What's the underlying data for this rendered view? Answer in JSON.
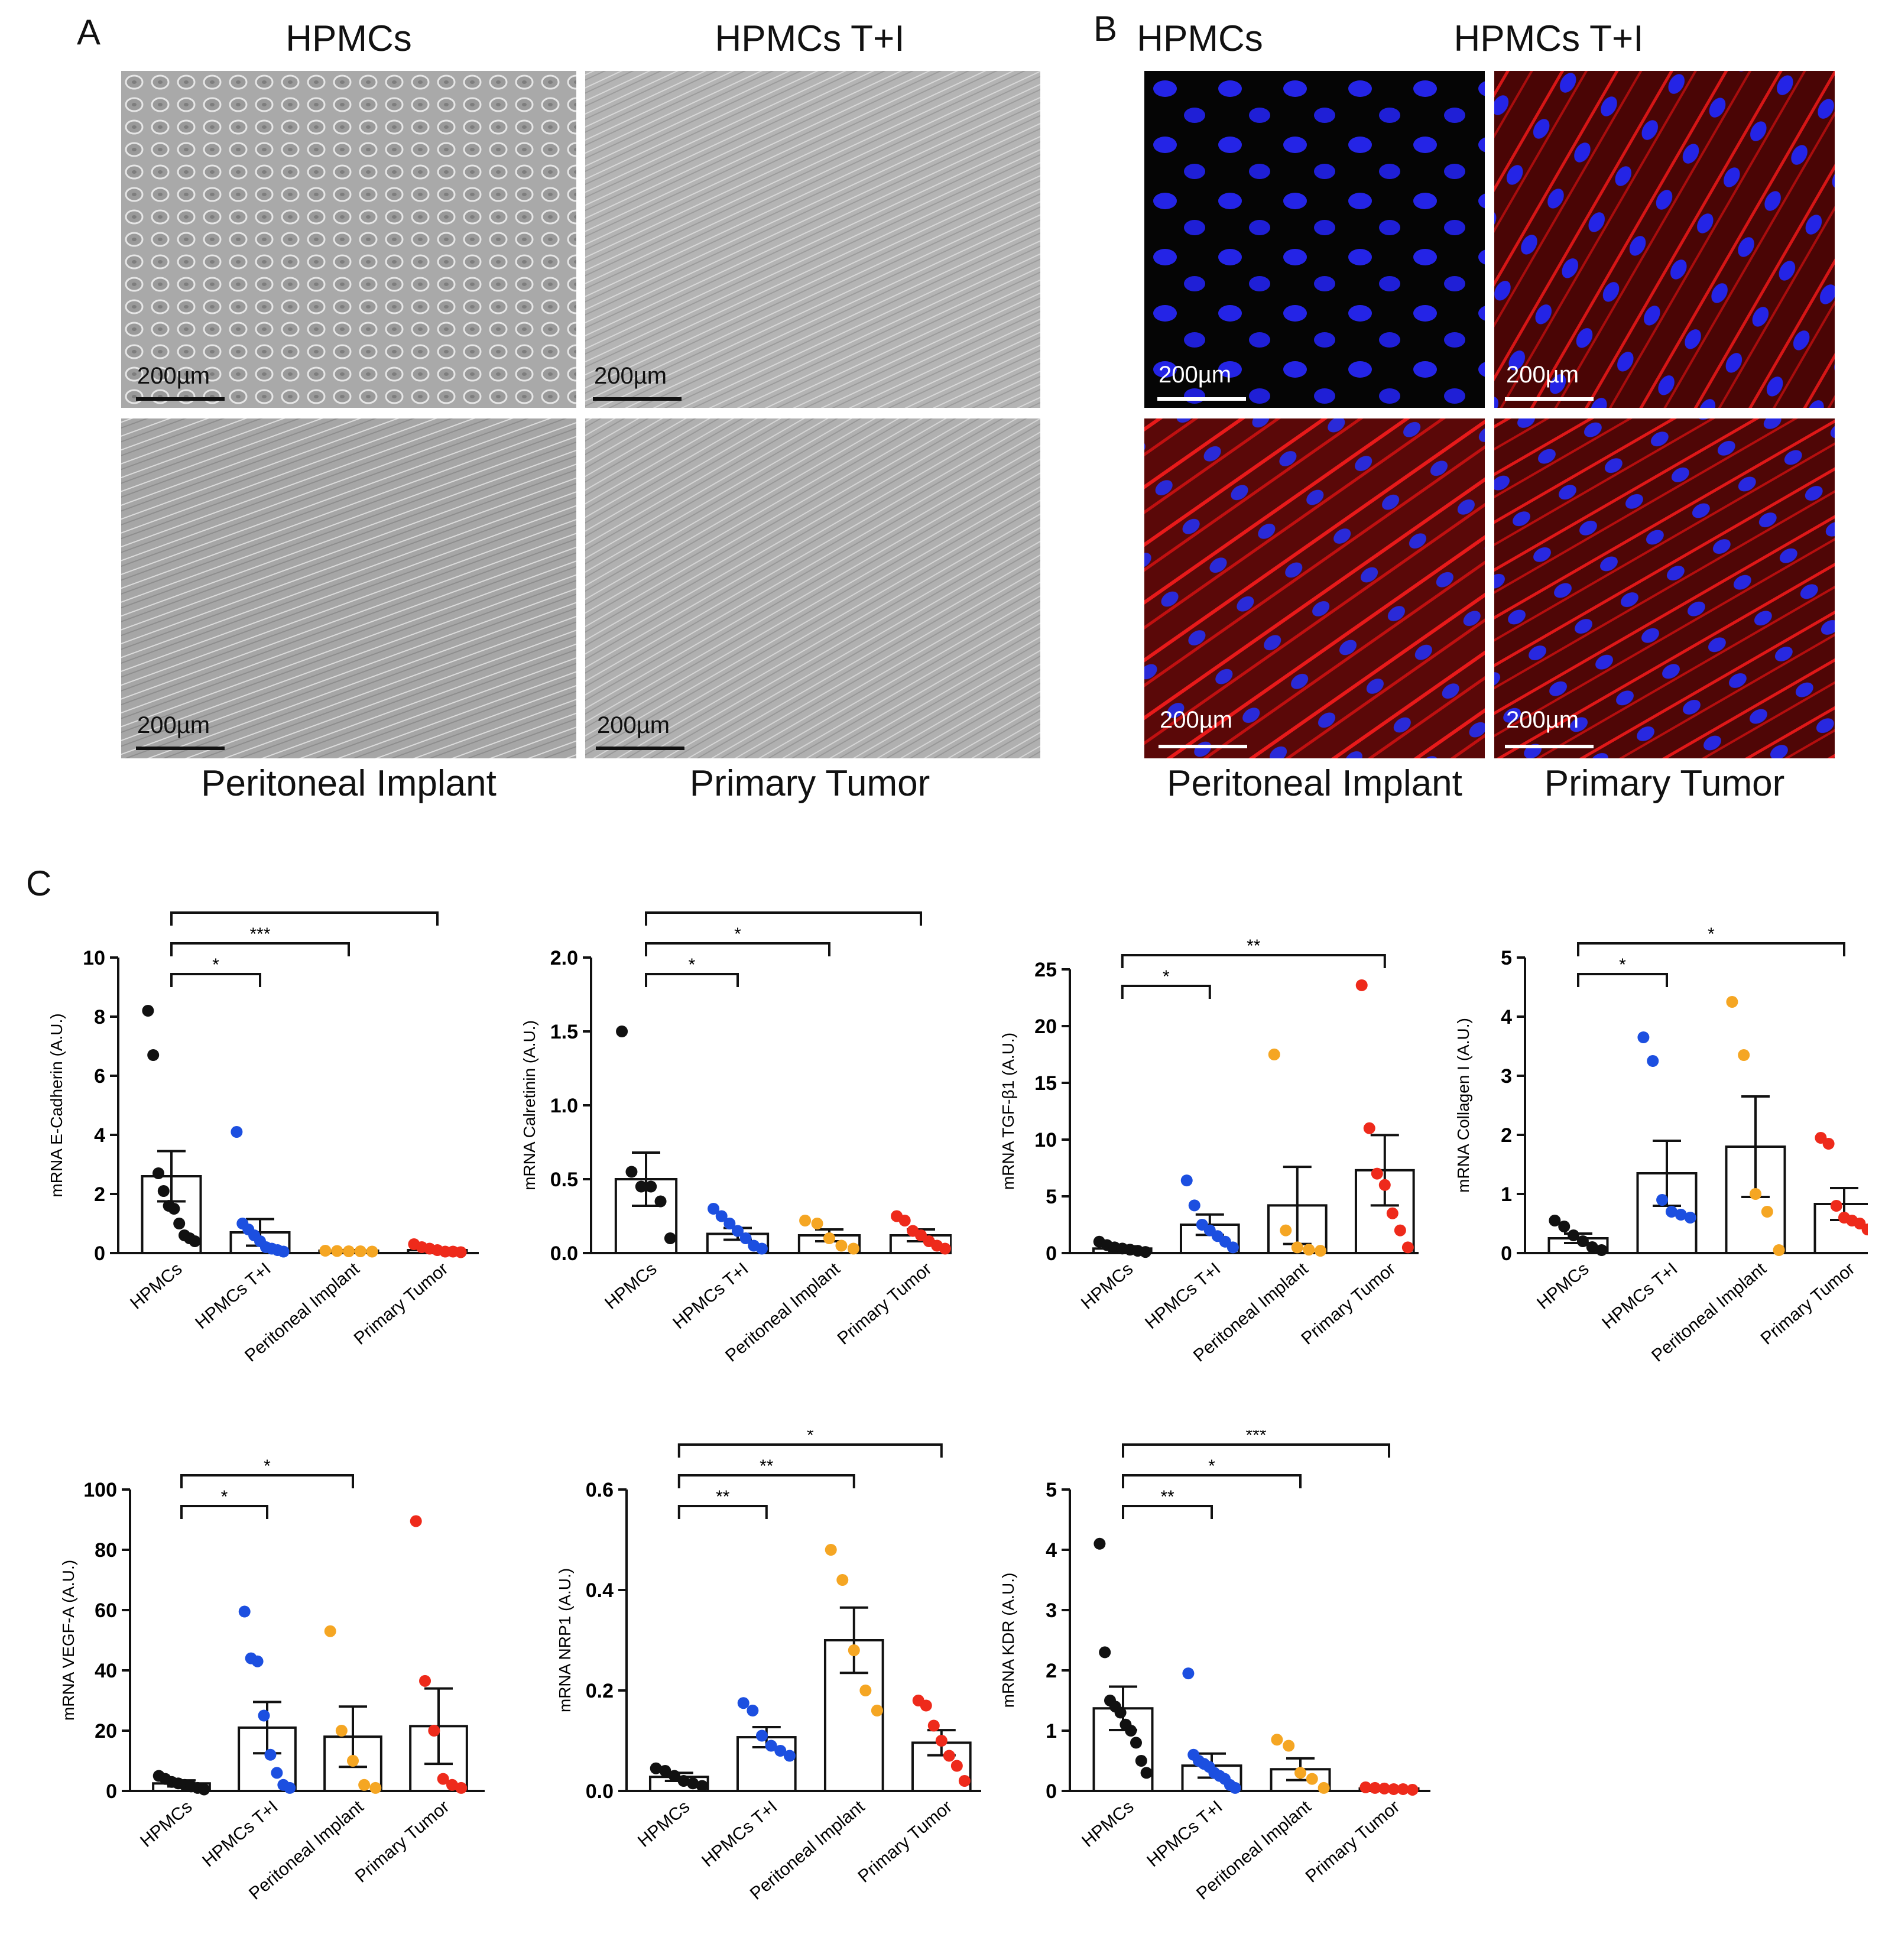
{
  "panelA": {
    "letter": "A",
    "col_titles": [
      "HPMCs",
      "HPMCs T+I"
    ],
    "bottom_titles": [
      "Peritoneal Implant",
      "Primary Tumor"
    ],
    "scale_label": "200µm"
  },
  "panelB": {
    "letter": "B",
    "col_titles": [
      "HPMCs",
      "HPMCs T+I"
    ],
    "bottom_titles": [
      "Peritoneal Implant",
      "Primary Tumor"
    ],
    "scale_label": "200µm"
  },
  "panelC": {
    "letter": "C"
  },
  "colors": {
    "HPMCs": "#111111",
    "HPMCs T+I": "#1c4fe0",
    "Peritoneal Implant": "#f5a623",
    "Primary Tumor": "#ee2a1b"
  },
  "chart_data": [
    {
      "type": "scatter",
      "ylabel": "mRNA E-Cadherin (A.U.)",
      "ylim": [
        0,
        10
      ],
      "yticks": [
        "0",
        "2",
        "4",
        "6",
        "8",
        "10"
      ],
      "categories": [
        "HPMCs",
        "HPMCs T+I",
        "Peritoneal Implant",
        "Primary Tumor"
      ],
      "means": [
        2.6,
        0.7,
        0.08,
        0.1
      ],
      "sem": [
        0.85,
        0.45,
        0.02,
        0.04
      ],
      "points": [
        [
          8.2,
          6.7,
          2.7,
          2.1,
          1.6,
          1.5,
          1.0,
          0.6,
          0.5,
          0.4
        ],
        [
          4.1,
          1.0,
          0.8,
          0.6,
          0.4,
          0.2,
          0.15,
          0.1,
          0.05
        ],
        [
          0.08,
          0.07,
          0.06,
          0.06,
          0.05
        ],
        [
          0.3,
          0.2,
          0.15,
          0.1,
          0.05,
          0.05,
          0.03
        ]
      ],
      "significance": [
        {
          "from": 0,
          "to": 1,
          "label": "*"
        },
        {
          "from": 0,
          "to": 2,
          "label": "***"
        },
        {
          "from": 0,
          "to": 3,
          "label": "***"
        }
      ]
    },
    {
      "type": "scatter",
      "ylabel": "mRNA Calretinin (A.U.)",
      "ylim": [
        0,
        2.0
      ],
      "yticks": [
        "0.0",
        "0.5",
        "1.0",
        "1.5",
        "2.0"
      ],
      "categories": [
        "HPMCs",
        "HPMCs T+I",
        "Peritoneal Implant",
        "Primary Tumor"
      ],
      "means": [
        0.5,
        0.13,
        0.12,
        0.12
      ],
      "sem": [
        0.18,
        0.04,
        0.04,
        0.04
      ],
      "points": [
        [
          1.5,
          0.55,
          0.45,
          0.45,
          0.35,
          0.1
        ],
        [
          0.3,
          0.25,
          0.2,
          0.15,
          0.1,
          0.05,
          0.03
        ],
        [
          0.22,
          0.2,
          0.1,
          0.05,
          0.03
        ],
        [
          0.25,
          0.22,
          0.15,
          0.12,
          0.08,
          0.05,
          0.03
        ]
      ],
      "significance": [
        {
          "from": 0,
          "to": 1,
          "label": "*"
        },
        {
          "from": 0,
          "to": 2,
          "label": "*"
        },
        {
          "from": 0,
          "to": 3,
          "label": "*"
        }
      ]
    },
    {
      "type": "scatter",
      "ylabel": "mRNA TGF-β1 (A.U.)",
      "ylim": [
        0,
        25
      ],
      "yticks": [
        "0",
        "5",
        "10",
        "15",
        "20",
        "25"
      ],
      "categories": [
        "HPMCs",
        "HPMCs T+I",
        "Peritoneal Implant",
        "Primary Tumor"
      ],
      "means": [
        0.4,
        2.5,
        4.2,
        7.3
      ],
      "sem": [
        0.2,
        0.9,
        3.4,
        3.1
      ],
      "points": [
        [
          1.0,
          0.7,
          0.5,
          0.4,
          0.3,
          0.2,
          0.1
        ],
        [
          6.4,
          4.2,
          2.5,
          2.0,
          1.5,
          1.0,
          0.5
        ],
        [
          17.5,
          2.0,
          0.5,
          0.3,
          0.2
        ],
        [
          23.6,
          11.0,
          7.0,
          6.0,
          3.5,
          2.0,
          0.5
        ]
      ],
      "significance": [
        {
          "from": 0,
          "to": 1,
          "label": "*"
        },
        {
          "from": 0,
          "to": 3,
          "label": "**"
        }
      ]
    },
    {
      "type": "scatter",
      "ylabel": "mRNA Collagen I (A.U.)",
      "ylim": [
        0,
        5
      ],
      "yticks": [
        "0",
        "1",
        "2",
        "3",
        "4",
        "5"
      ],
      "categories": [
        "HPMCs",
        "HPMCs T+I",
        "Peritoneal Implant",
        "Primary Tumor"
      ],
      "means": [
        0.25,
        1.35,
        1.8,
        0.83
      ],
      "sem": [
        0.08,
        0.55,
        0.85,
        0.27
      ],
      "points": [
        [
          0.55,
          0.45,
          0.3,
          0.2,
          0.1,
          0.05
        ],
        [
          3.65,
          3.25,
          0.9,
          0.7,
          0.65,
          0.6
        ],
        [
          4.25,
          3.35,
          1.0,
          0.7,
          0.05
        ],
        [
          1.95,
          1.85,
          0.8,
          0.6,
          0.55,
          0.5,
          0.4
        ]
      ],
      "significance": [
        {
          "from": 0,
          "to": 1,
          "label": "*"
        },
        {
          "from": 0,
          "to": 3,
          "label": "*"
        }
      ]
    },
    {
      "type": "scatter",
      "ylabel": "mRNA VEGF-A (A.U.)",
      "ylim": [
        0,
        100
      ],
      "yticks": [
        "0",
        "20",
        "40",
        "60",
        "80",
        "100"
      ],
      "categories": [
        "HPMCs",
        "HPMCs T+I",
        "Peritoneal Implant",
        "Primary Tumor"
      ],
      "means": [
        2.5,
        21.0,
        18.0,
        21.5
      ],
      "sem": [
        1.0,
        8.5,
        10.0,
        12.5
      ],
      "points": [
        [
          5.0,
          4.0,
          3.0,
          2.5,
          2.0,
          1.5,
          1.0,
          0.5
        ],
        [
          59.5,
          44.0,
          43.0,
          25.0,
          12.0,
          6.0,
          2.0,
          1.0
        ],
        [
          53.0,
          20.0,
          10.0,
          2.0,
          1.0
        ],
        [
          89.5,
          36.5,
          20.0,
          4.0,
          2.0,
          1.0
        ]
      ],
      "significance": [
        {
          "from": 0,
          "to": 1,
          "label": "*"
        },
        {
          "from": 0,
          "to": 2,
          "label": "*"
        }
      ]
    },
    {
      "type": "scatter",
      "ylabel": "mRNA NRP1 (A.U.)",
      "ylim": [
        0,
        0.6
      ],
      "yticks": [
        "0.0",
        "0.2",
        "0.4",
        "0.6"
      ],
      "categories": [
        "HPMCs",
        "HPMCs T+I",
        "Peritoneal Implant",
        "Primary Tumor"
      ],
      "means": [
        0.028,
        0.107,
        0.3,
        0.096
      ],
      "sem": [
        0.008,
        0.02,
        0.065,
        0.025
      ],
      "points": [
        [
          0.045,
          0.04,
          0.03,
          0.02,
          0.015,
          0.01
        ],
        [
          0.175,
          0.16,
          0.11,
          0.09,
          0.08,
          0.07
        ],
        [
          0.48,
          0.42,
          0.28,
          0.2,
          0.16
        ],
        [
          0.18,
          0.17,
          0.13,
          0.1,
          0.07,
          0.05,
          0.02
        ]
      ],
      "significance": [
        {
          "from": 0,
          "to": 1,
          "label": "**"
        },
        {
          "from": 0,
          "to": 2,
          "label": "**"
        },
        {
          "from": 0,
          "to": 3,
          "label": "*"
        }
      ]
    },
    {
      "type": "scatter",
      "ylabel": "mRNA KDR (A.U.)",
      "ylim": [
        0,
        5
      ],
      "yticks": [
        "0",
        "1",
        "2",
        "3",
        "4",
        "5"
      ],
      "categories": [
        "HPMCs",
        "HPMCs T+I",
        "Peritoneal Implant",
        "Primary Tumor"
      ],
      "means": [
        1.37,
        0.42,
        0.36,
        0.04
      ],
      "sem": [
        0.36,
        0.2,
        0.18,
        0.01
      ],
      "points": [
        [
          4.1,
          2.3,
          1.5,
          1.4,
          1.3,
          1.1,
          1.0,
          0.8,
          0.5,
          0.3
        ],
        [
          1.95,
          0.6,
          0.5,
          0.45,
          0.4,
          0.3,
          0.25,
          0.2,
          0.1,
          0.05
        ],
        [
          0.85,
          0.75,
          0.3,
          0.2,
          0.05
        ],
        [
          0.06,
          0.05,
          0.04,
          0.03,
          0.03,
          0.02
        ]
      ],
      "significance": [
        {
          "from": 0,
          "to": 1,
          "label": "**"
        },
        {
          "from": 0,
          "to": 2,
          "label": "*"
        },
        {
          "from": 0,
          "to": 3,
          "label": "***"
        }
      ]
    }
  ]
}
